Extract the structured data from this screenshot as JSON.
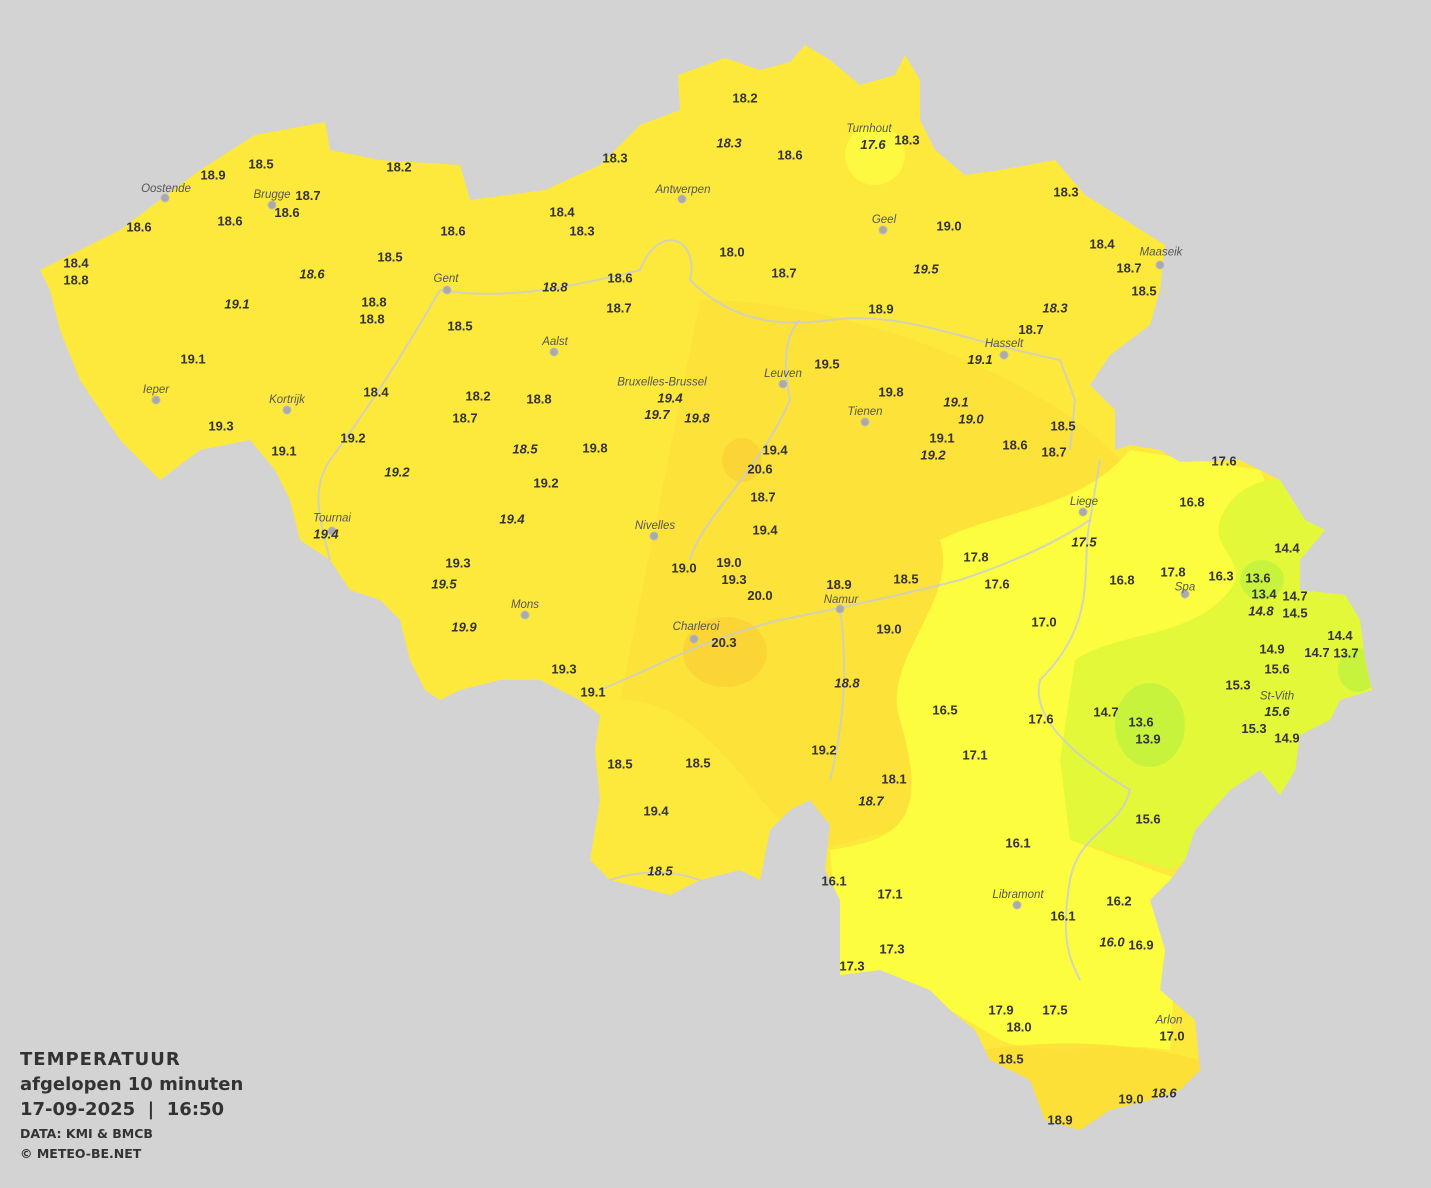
{
  "legend": {
    "title": "TEMPERATUUR",
    "subtitle": "afgelopen 10 minuten",
    "datetime": "17-09-2025  |  16:50",
    "source": "DATA: KMI & BMCB",
    "copyright": "© METEO-BE.NET"
  },
  "colors": {
    "background": "#d3d3d3",
    "base": "#fde93c",
    "warm": "#fbdc36",
    "cool_yellow": "#fdfd40",
    "green_yellow": "#e4f83a",
    "green": "#c8f33c",
    "text": "#333333"
  },
  "cities": [
    "Turnhout",
    "Oostende",
    "Brugge",
    "Antwerpen",
    "Geel",
    "Maaseik",
    "Gent",
    "Hasselt",
    "Aalst",
    "Leuven",
    "Bruxelles-Brussel",
    "Ieper",
    "Kortrijk",
    "Tienen",
    "Liege",
    "Tournai",
    "Nivelles",
    "Spa",
    "Namur",
    "Mons",
    "Charleroi",
    "St-Vith",
    "Libramont",
    "Arlon"
  ],
  "stations": [
    "18.2",
    "18.3",
    "18.6",
    "17.6",
    "18.3",
    "18.3",
    "18.5",
    "18.9",
    "18.2",
    "18.7",
    "18.6",
    "18.3",
    "18.4",
    "18.3",
    "18.6",
    "18.6",
    "18.6",
    "19.0",
    "18.0",
    "18.7",
    "19.5",
    "18.4",
    "18.7",
    "18.5",
    "18.4",
    "18.8",
    "18.6",
    "18.6",
    "18.8",
    "18.5",
    "19.1",
    "18.8",
    "18.8",
    "18.7",
    "18.9",
    "18.3",
    "18.5",
    "18.7",
    "19.1",
    "19.1",
    "19.5",
    "18.4",
    "18.2",
    "18.8",
    "19.4",
    "19.8",
    "19.1",
    "19.0",
    "19.7",
    "19.8",
    "18.7",
    "19.3",
    "18.5",
    "19.2",
    "19.1",
    "18.5",
    "19.8",
    "19.4",
    "19.1",
    "19.2",
    "18.6",
    "18.7",
    "17.6",
    "19.2",
    "20.6",
    "19.2",
    "18.7",
    "16.8",
    "19.4",
    "19.4",
    "19.4",
    "17.5",
    "14.4",
    "17.8",
    "19.3",
    "19.0",
    "19.0",
    "18.5",
    "19.3",
    "20.0",
    "18.9",
    "17.6",
    "16.8",
    "17.8",
    "16.3",
    "13.6",
    "19.5",
    "13.4",
    "14.7",
    "14.8",
    "14.5",
    "19.9",
    "19.0",
    "17.0",
    "20.3",
    "14.4",
    "14.7",
    "13.7",
    "14.9",
    "15.6",
    "19.3",
    "15.3",
    "18.8",
    "19.1",
    "15.6",
    "16.5",
    "14.7",
    "17.6",
    "13.6",
    "13.9",
    "15.3",
    "14.9",
    "19.2",
    "17.1",
    "18.5",
    "18.5",
    "18.1",
    "18.7",
    "19.4",
    "15.6",
    "16.1",
    "18.5",
    "16.1",
    "17.1",
    "16.2",
    "16.1",
    "16.0",
    "16.9",
    "17.3",
    "17.3",
    "17.5",
    "17.9",
    "18.0",
    "17.0",
    "18.5",
    "19.0",
    "18.6",
    "18.9"
  ]
}
